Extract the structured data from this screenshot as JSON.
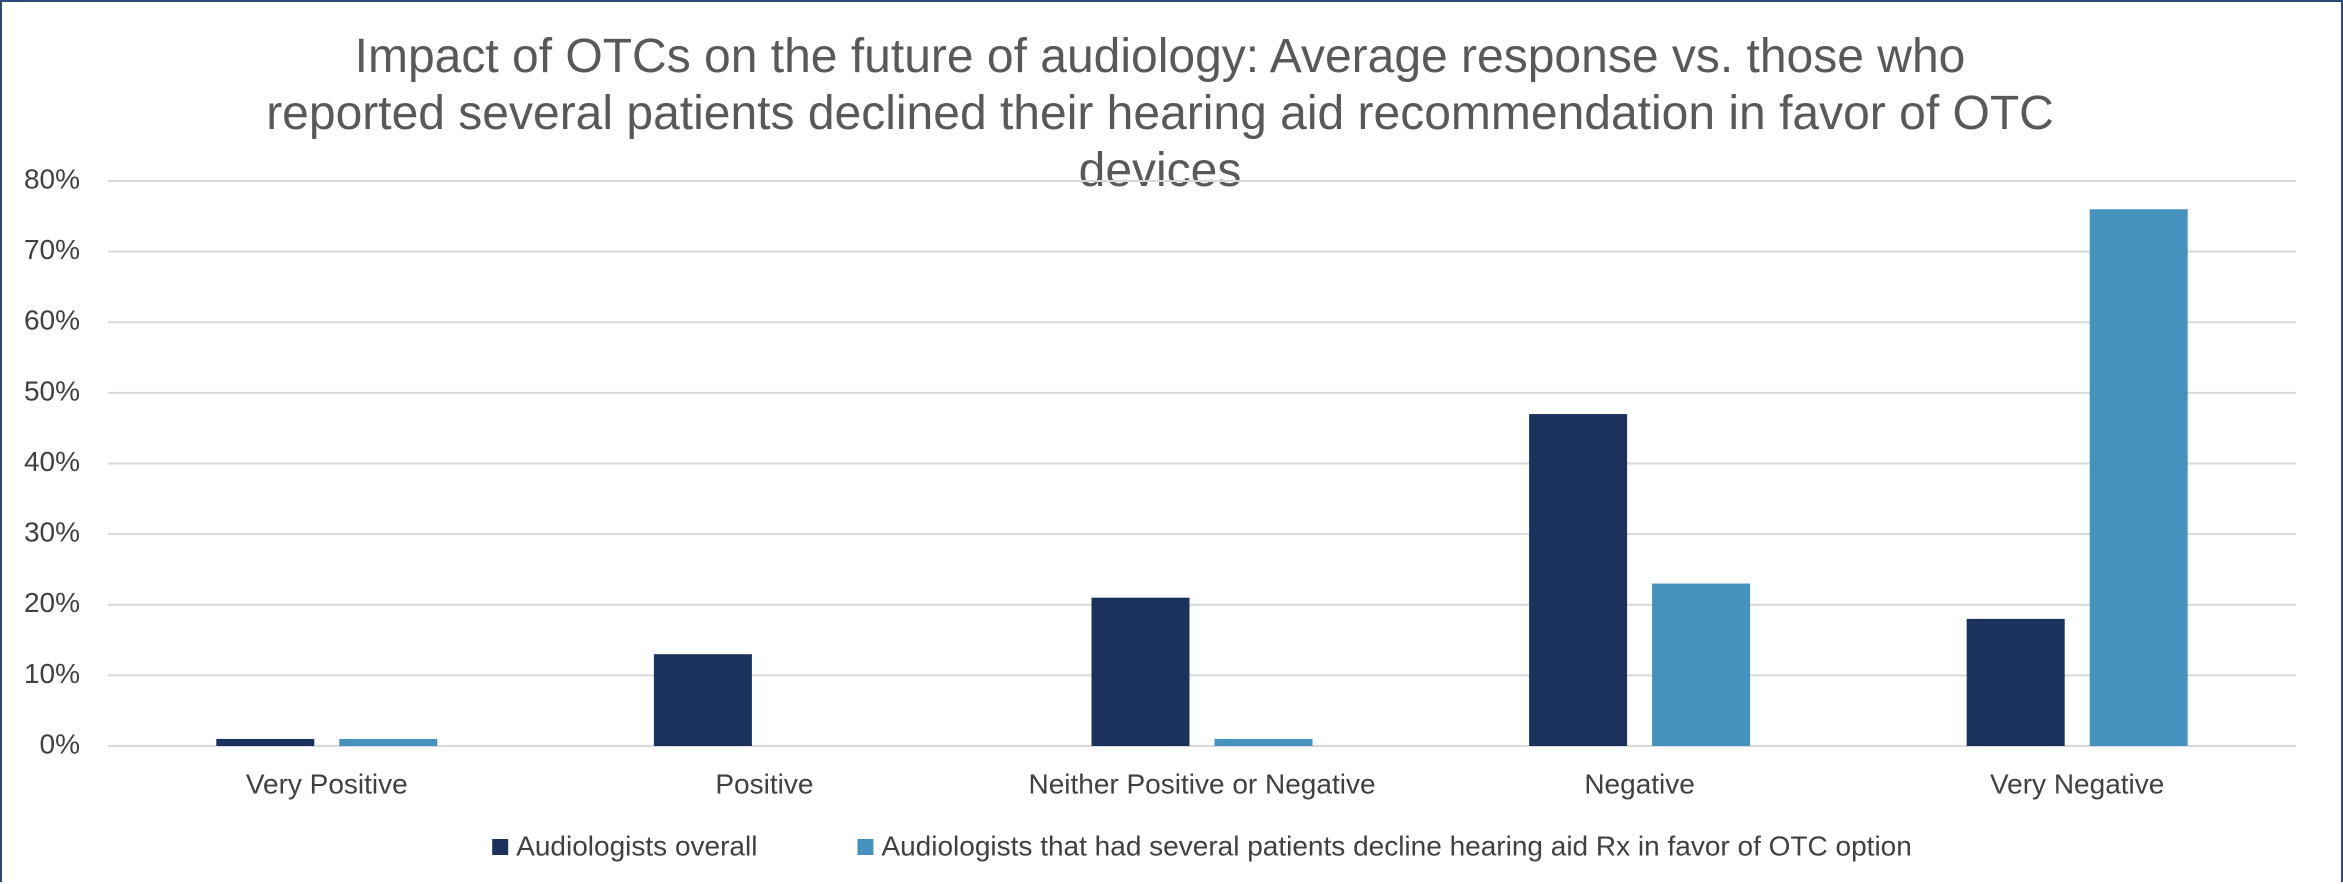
{
  "chart_data": {
    "type": "bar",
    "title": "Impact of OTCs on the future of audiology: Average response vs. those who reported several patients declined their hearing aid recommendation in favor of OTC devices",
    "categories": [
      "Very Positive",
      "Positive",
      "Neither Positive or Negative",
      "Negative",
      "Very Negative"
    ],
    "series": [
      {
        "name": "Audiologists overall",
        "color": "#1b325e",
        "values": [
          1,
          13,
          21,
          47,
          18
        ]
      },
      {
        "name": "Audiologists that had several patients decline hearing aid Rx in favor of OTC option",
        "color": "#4592bf",
        "values": [
          1,
          0,
          1,
          23,
          76
        ]
      }
    ],
    "ylim": [
      0,
      80
    ],
    "yticks": [
      {
        "value": 0,
        "label": "0%"
      },
      {
        "value": 10,
        "label": "10%"
      },
      {
        "value": 20,
        "label": "20%"
      },
      {
        "value": 30,
        "label": "30%"
      },
      {
        "value": 40,
        "label": "40%"
      },
      {
        "value": 50,
        "label": "50%"
      },
      {
        "value": 60,
        "label": "60%"
      },
      {
        "value": 70,
        "label": "70%"
      },
      {
        "value": 80,
        "label": "80%"
      }
    ],
    "grid": true,
    "legend": "bottom"
  }
}
